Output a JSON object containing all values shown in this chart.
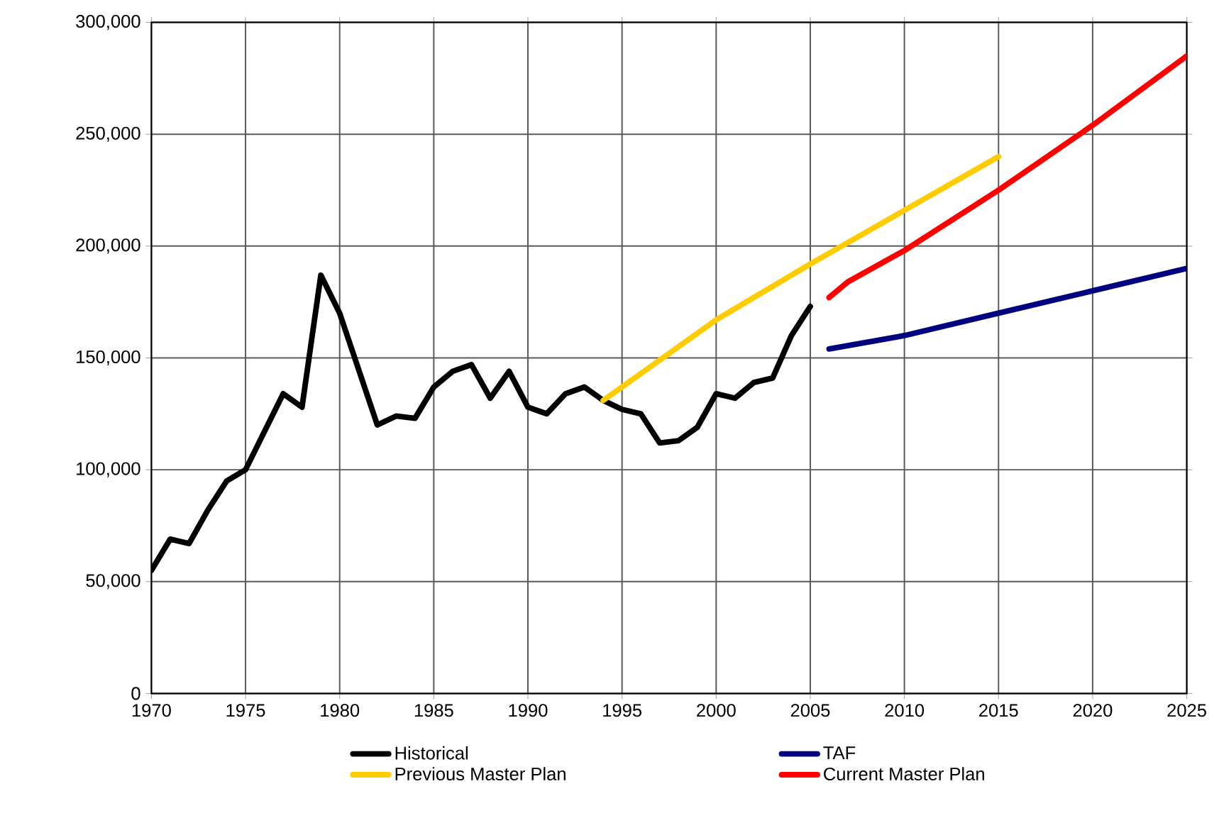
{
  "chart_data": {
    "type": "line",
    "xlim": [
      1970,
      2025
    ],
    "xticks": [
      1970,
      1975,
      1980,
      1985,
      1990,
      1995,
      2000,
      2005,
      2010,
      2015,
      2020,
      2025
    ],
    "ylim": [
      0,
      300000
    ],
    "yticks": [
      {
        "value": 0,
        "label": "0"
      },
      {
        "value": 50000,
        "label": "50,000"
      },
      {
        "value": 100000,
        "label": "100,000"
      },
      {
        "value": 150000,
        "label": "150,000"
      },
      {
        "value": 200000,
        "label": "200,000"
      },
      {
        "value": 250000,
        "label": "250,000"
      },
      {
        "value": 300000,
        "label": "300,000"
      }
    ],
    "grid": true,
    "legend": "bottom",
    "marker": "none",
    "line_style": "solid",
    "series": [
      {
        "name": "Historical",
        "color": "#000000",
        "x": [
          1970,
          1971,
          1972,
          1973,
          1974,
          1975,
          1976,
          1977,
          1978,
          1979,
          1980,
          1981,
          1982,
          1983,
          1984,
          1985,
          1986,
          1987,
          1988,
          1989,
          1990,
          1991,
          1992,
          1993,
          1994,
          1995,
          1996,
          1997,
          1998,
          1999,
          2000,
          2001,
          2002,
          2003,
          2004,
          2005
        ],
        "values": [
          55000,
          69000,
          67000,
          82000,
          95000,
          100000,
          117000,
          134000,
          128000,
          187000,
          170000,
          145000,
          120000,
          124000,
          123000,
          137000,
          144000,
          147000,
          132000,
          144000,
          128000,
          125000,
          134000,
          137000,
          131000,
          127000,
          125000,
          112000,
          113000,
          119000,
          134000,
          132000,
          139000,
          141000,
          160000,
          173000
        ]
      },
      {
        "name": "TAF",
        "color": "#000080",
        "x": [
          2006,
          2010,
          2015,
          2020,
          2025
        ],
        "values": [
          154000,
          160000,
          170000,
          180000,
          190000
        ]
      },
      {
        "name": "Previous Master Plan",
        "color": "#ffcc00",
        "x": [
          1994,
          2000,
          2005,
          2010,
          2015
        ],
        "values": [
          131000,
          167000,
          192000,
          216000,
          240000
        ]
      },
      {
        "name": "Current Master Plan",
        "color": "#ff0000",
        "x": [
          2006,
          2007,
          2010,
          2015,
          2020,
          2025
        ],
        "values": [
          177000,
          184000,
          198000,
          225000,
          254000,
          285000
        ]
      }
    ]
  }
}
